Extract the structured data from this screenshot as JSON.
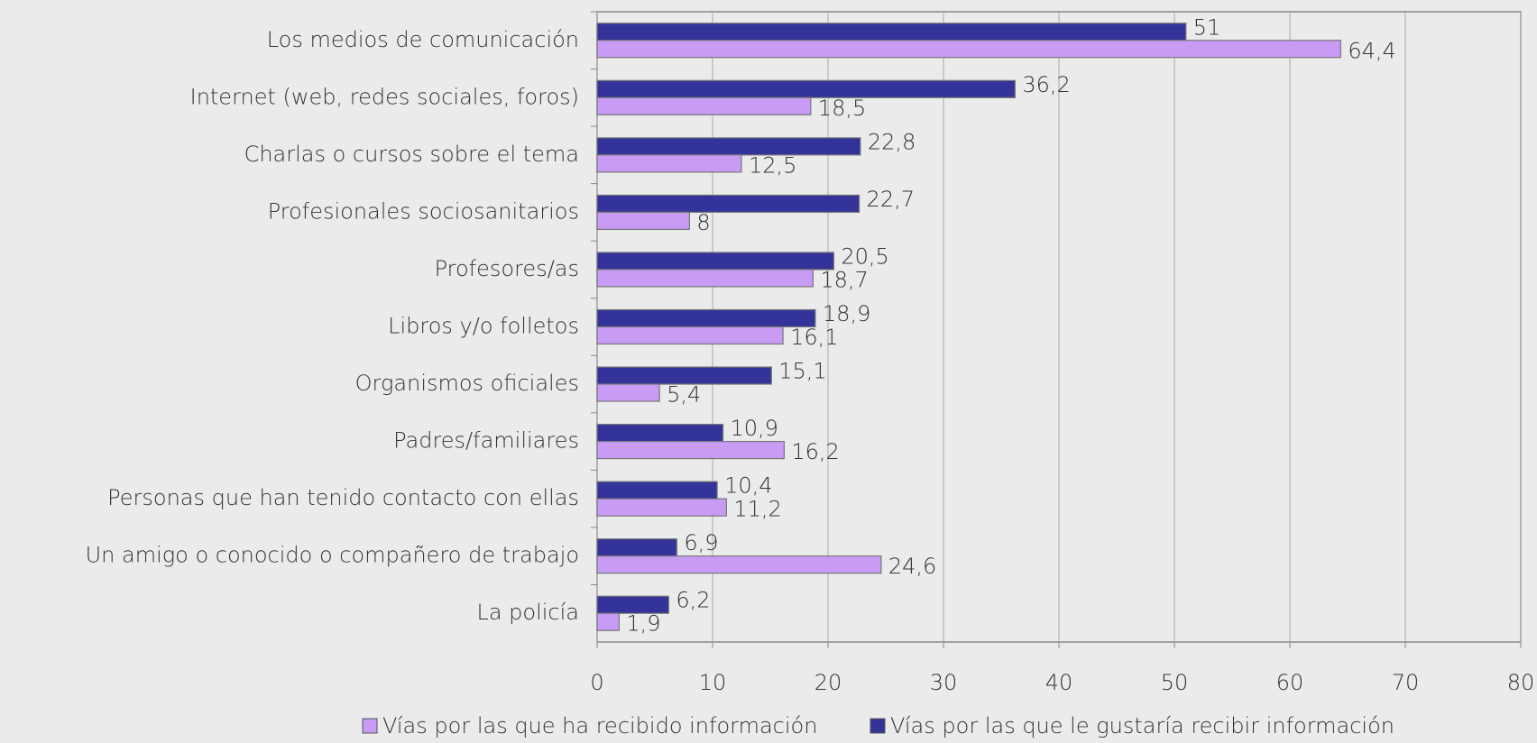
{
  "chart_data": {
    "type": "bar",
    "orientation": "horizontal",
    "categories": [
      "Los medios de comunicación",
      "Internet (web, redes sociales, foros)",
      "Charlas o cursos sobre el tema",
      "Profesionales sociosanitarios",
      "Profesores/as",
      "Libros y/o folletos",
      "Organismos oficiales",
      "Padres/familiares",
      "Personas que han tenido contacto con ellas",
      "Un amigo o conocido o compañero de trabajo",
      "La policía"
    ],
    "series": [
      {
        "name": "Vías por las que ha recibido información",
        "color": "#c89bf5",
        "values": [
          64.4,
          18.5,
          12.5,
          8,
          18.7,
          16.1,
          5.4,
          16.2,
          11.2,
          24.6,
          1.9
        ],
        "value_labels": [
          "64,4",
          "18,5",
          "12,5",
          "8",
          "18,7",
          "16,1",
          "5,4",
          "16,2",
          "11,2",
          "24,6",
          "1,9"
        ]
      },
      {
        "name": "Vías por las que le gustaría recibir información",
        "color": "#333399",
        "values": [
          51,
          36.2,
          22.8,
          22.7,
          20.5,
          18.9,
          15.1,
          10.9,
          10.4,
          6.9,
          6.2
        ],
        "value_labels": [
          "51",
          "36,2",
          "22,8",
          "22,7",
          "20,5",
          "18,9",
          "15,1",
          "10,9",
          "10,4",
          "6,9",
          "6,2"
        ]
      }
    ],
    "xlim": [
      0,
      80
    ],
    "xticks": [
      0,
      10,
      20,
      30,
      40,
      50,
      60,
      70,
      80
    ],
    "grid": true,
    "legend": "bottom"
  }
}
